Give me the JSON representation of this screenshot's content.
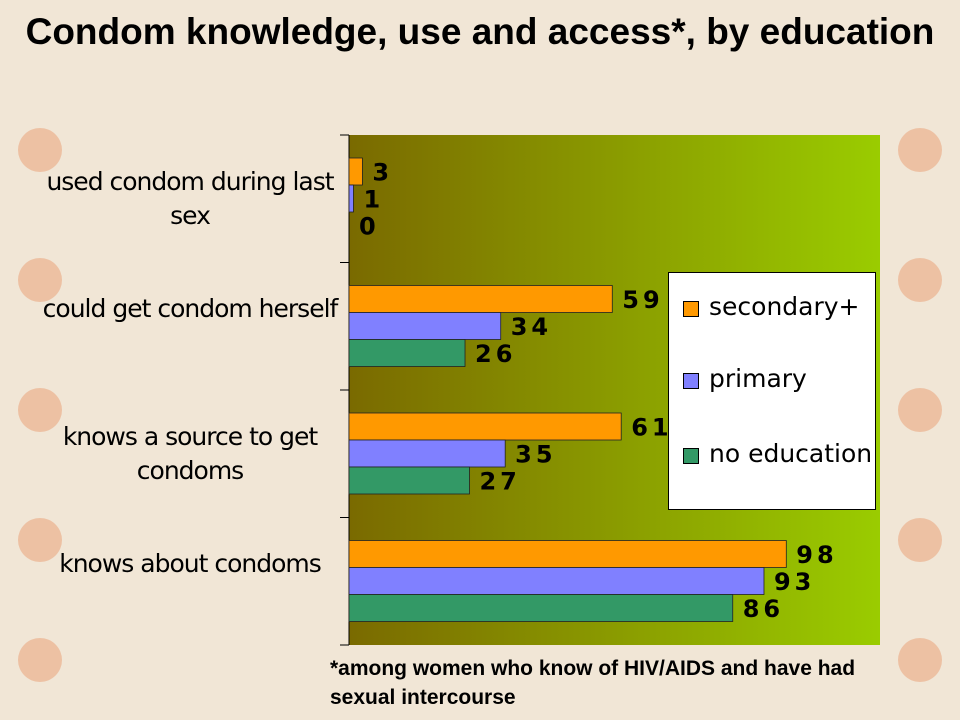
{
  "chart_data": {
    "type": "bar",
    "orientation": "horizontal",
    "title": "Condom knowledge, use and access*, by education",
    "footnote": "*among women who know of HIV/AIDS and have had sexual intercourse",
    "categories": [
      "used condom during last sex",
      "could get condom herself",
      "knows a source to get condoms",
      "knows about condoms"
    ],
    "series": [
      {
        "name": "secondary+",
        "color": "#ff9900",
        "values": [
          3,
          59,
          61,
          98
        ]
      },
      {
        "name": "primary",
        "color": "#8080ff",
        "values": [
          1,
          34,
          35,
          93
        ]
      },
      {
        "name": "no education",
        "color": "#339966",
        "values": [
          0,
          26,
          27,
          86
        ]
      }
    ],
    "xlim": [
      0,
      119
    ],
    "legend": "right"
  }
}
